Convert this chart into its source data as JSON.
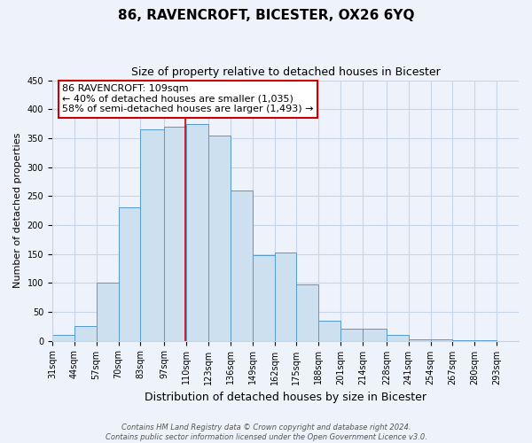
{
  "title": "86, RAVENCROFT, BICESTER, OX26 6YQ",
  "subtitle": "Size of property relative to detached houses in Bicester",
  "xlabel": "Distribution of detached houses by size in Bicester",
  "ylabel": "Number of detached properties",
  "bin_labels": [
    "31sqm",
    "44sqm",
    "57sqm",
    "70sqm",
    "83sqm",
    "97sqm",
    "110sqm",
    "123sqm",
    "136sqm",
    "149sqm",
    "162sqm",
    "175sqm",
    "188sqm",
    "201sqm",
    "214sqm",
    "228sqm",
    "241sqm",
    "254sqm",
    "267sqm",
    "280sqm",
    "293sqm"
  ],
  "bin_edges": [
    31,
    44,
    57,
    70,
    83,
    97,
    110,
    123,
    136,
    149,
    162,
    175,
    188,
    201,
    214,
    228,
    241,
    254,
    267,
    280,
    293,
    306
  ],
  "bar_heights": [
    10,
    25,
    100,
    230,
    365,
    370,
    375,
    355,
    260,
    148,
    153,
    97,
    35,
    21,
    21,
    10,
    3,
    3,
    1,
    1,
    0
  ],
  "bar_color": "#cce0f0",
  "bar_edge_color": "#5599cc",
  "property_value": 109.5,
  "vline_color": "#cc0000",
  "annotation_line1": "86 RAVENCROFT: 109sqm",
  "annotation_line2": "← 40% of detached houses are smaller (1,035)",
  "annotation_line3": "58% of semi-detached houses are larger (1,493) →",
  "annotation_box_color": "#ffffff",
  "annotation_box_edge": "#cc0000",
  "ylim": [
    0,
    450
  ],
  "xlim_left": 31,
  "xlim_right": 306,
  "footnote_line1": "Contains HM Land Registry data © Crown copyright and database right 2024.",
  "footnote_line2": "Contains public sector information licensed under the Open Government Licence v3.0.",
  "background_color": "#eef2fb",
  "grid_color": "#c8d4e8",
  "title_fontsize": 11,
  "subtitle_fontsize": 9,
  "ylabel_fontsize": 8,
  "xlabel_fontsize": 9,
  "tick_fontsize": 7,
  "annotation_fontsize": 8,
  "footnote_fontsize": 6
}
